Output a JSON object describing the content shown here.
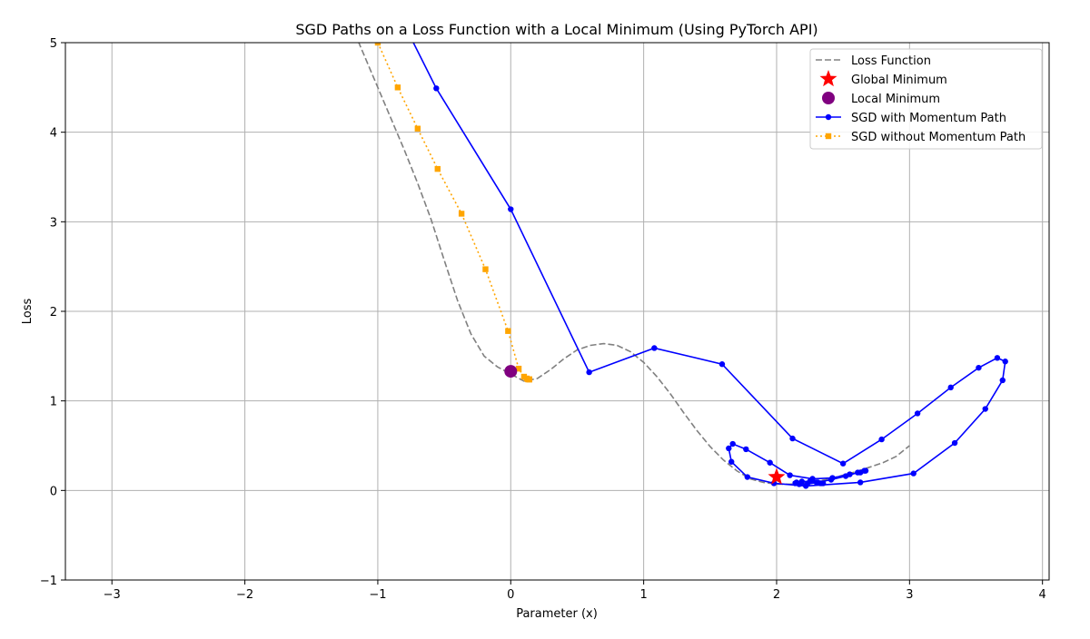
{
  "chart_data": {
    "type": "line",
    "title": "SGD Paths on a Loss Function with a Local Minimum (Using PyTorch API)",
    "xlabel": "Parameter (x)",
    "ylabel": "Loss",
    "xlim": [
      -3.35,
      4.05
    ],
    "ylim": [
      -1,
      5
    ],
    "xticks": [
      -3,
      -2,
      -1,
      0,
      1,
      2,
      3,
      4
    ],
    "xtick_labels": [
      "−3",
      "−2",
      "−1",
      "0",
      "1",
      "2",
      "3",
      "4"
    ],
    "yticks": [
      -1,
      0,
      1,
      2,
      3,
      4,
      5
    ],
    "ytick_labels": [
      "−1",
      "0",
      "1",
      "2",
      "3",
      "4",
      "5"
    ],
    "grid": true,
    "legend_position": "top-right",
    "series": [
      {
        "name": "Loss Function",
        "kind": "line",
        "color": "#808080",
        "dash": "dashed",
        "x": [
          -1.2,
          -1.1,
          -1.0,
          -0.9,
          -0.8,
          -0.7,
          -0.6,
          -0.5,
          -0.4,
          -0.3,
          -0.2,
          -0.1,
          0.0,
          0.1,
          0.2,
          0.3,
          0.4,
          0.5,
          0.6,
          0.7,
          0.8,
          0.9,
          1.0,
          1.1,
          1.2,
          1.3,
          1.4,
          1.5,
          1.6,
          1.7,
          1.8,
          1.9,
          2.0,
          2.1,
          2.2,
          2.3,
          2.4,
          2.5,
          2.6,
          2.7,
          2.8,
          2.9,
          3.0
        ],
        "y": [
          5.2,
          4.85,
          4.5,
          4.15,
          3.8,
          3.43,
          3.03,
          2.57,
          2.12,
          1.75,
          1.5,
          1.38,
          1.3,
          1.22,
          1.25,
          1.35,
          1.47,
          1.57,
          1.62,
          1.64,
          1.62,
          1.55,
          1.43,
          1.27,
          1.08,
          0.87,
          0.67,
          0.49,
          0.34,
          0.22,
          0.13,
          0.09,
          0.07,
          0.07,
          0.08,
          0.1,
          0.13,
          0.17,
          0.21,
          0.26,
          0.31,
          0.38,
          0.5
        ]
      },
      {
        "name": "Global Minimum",
        "kind": "marker",
        "marker": "star",
        "color": "#ff0000",
        "x": [
          2.0
        ],
        "y": [
          0.15
        ]
      },
      {
        "name": "Local Minimum",
        "kind": "marker",
        "marker": "circle",
        "color": "#800080",
        "x": [
          0.0
        ],
        "y": [
          1.33
        ]
      },
      {
        "name": "SGD with Momentum Path",
        "kind": "line",
        "color": "#0000ff",
        "dash": "solid",
        "marker": "dot",
        "x": [
          -0.8,
          -0.56,
          0.0,
          0.59,
          1.08,
          1.59,
          2.12,
          2.5,
          2.79,
          3.06,
          3.31,
          3.52,
          3.66,
          3.72,
          3.7,
          3.57,
          3.34,
          3.03,
          2.63,
          2.22,
          1.98,
          1.78,
          1.66,
          1.64,
          1.67,
          1.77,
          1.95,
          2.1,
          2.27,
          2.42,
          2.55,
          2.63,
          2.67,
          2.66,
          2.61,
          2.52,
          2.41,
          2.31,
          2.23,
          2.17,
          2.14,
          2.15,
          2.19,
          2.25,
          2.3,
          2.34,
          2.35,
          2.33
        ],
        "y": [
          5.2,
          4.49,
          3.14,
          1.32,
          1.59,
          1.41,
          0.58,
          0.3,
          0.57,
          0.86,
          1.15,
          1.37,
          1.48,
          1.44,
          1.23,
          0.91,
          0.53,
          0.19,
          0.09,
          0.05,
          0.08,
          0.15,
          0.32,
          0.47,
          0.52,
          0.46,
          0.31,
          0.17,
          0.13,
          0.14,
          0.18,
          0.2,
          0.22,
          0.22,
          0.2,
          0.16,
          0.12,
          0.09,
          0.07,
          0.07,
          0.08,
          0.09,
          0.1,
          0.1,
          0.09,
          0.08,
          0.08,
          0.08
        ]
      },
      {
        "name": "SGD without Momentum Path",
        "kind": "line",
        "color": "#ffa500",
        "dash": "dotted",
        "marker": "square",
        "x": [
          -1.0,
          -0.85,
          -0.7,
          -0.55,
          -0.37,
          -0.19,
          -0.02,
          0.06,
          0.1,
          0.12,
          0.13,
          0.14,
          0.14,
          0.14
        ],
        "y": [
          5.0,
          4.5,
          4.04,
          3.59,
          3.09,
          2.47,
          1.78,
          1.36,
          1.27,
          1.25,
          1.24,
          1.24,
          1.24,
          1.24
        ]
      }
    ]
  }
}
